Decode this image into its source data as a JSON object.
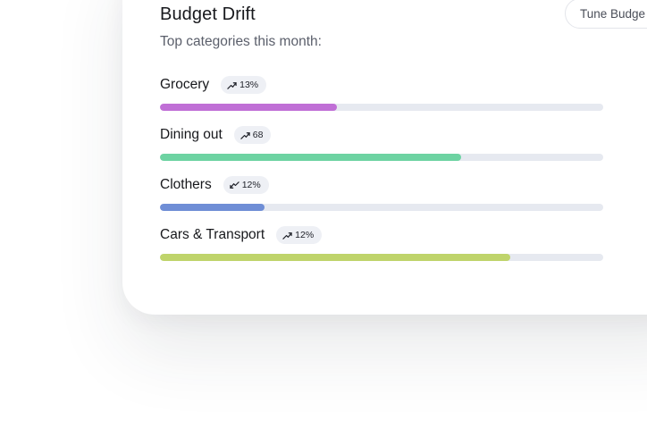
{
  "card": {
    "title": "Budget Drift",
    "subtitle": "Top categories this month:",
    "tune_button_label": "Tune Budge"
  },
  "categories": [
    {
      "label": "Grocery",
      "change": "13%",
      "trend": "up",
      "fill_fraction": 0.4,
      "color": "#c06fd6"
    },
    {
      "label": "Dining out",
      "change": "68",
      "trend": "up",
      "fill_fraction": 0.68,
      "color": "#6dd3a2"
    },
    {
      "label": "Clothers",
      "change": "12%",
      "trend": "down",
      "fill_fraction": 0.235,
      "color": "#6f8ed6"
    },
    {
      "label": "Cars & Transport",
      "change": "12%",
      "trend": "up",
      "fill_fraction": 0.79,
      "color": "#bfd46b"
    }
  ]
}
